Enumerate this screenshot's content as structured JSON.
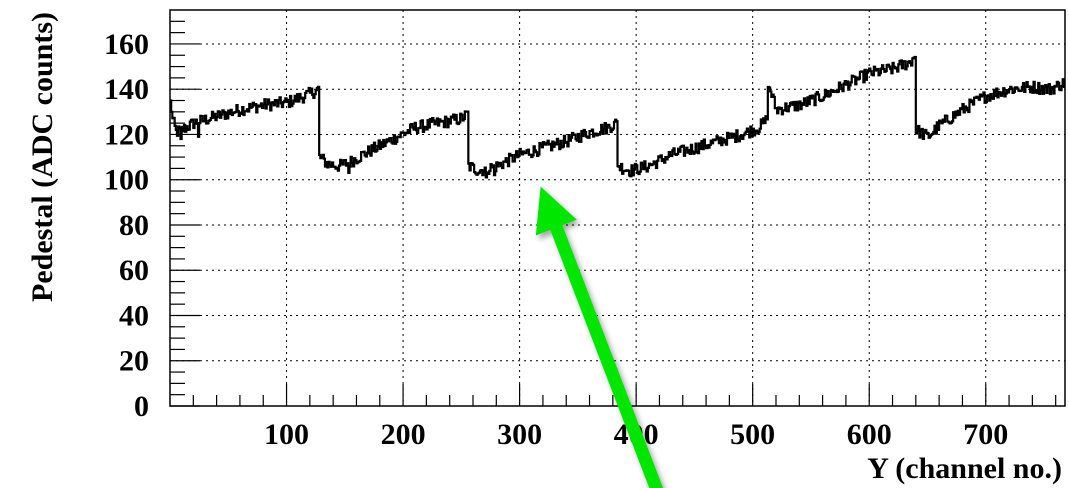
{
  "chart_data": {
    "type": "line",
    "title": "",
    "xlabel": "Y (channel no.)",
    "ylabel": "Pedestal (ADC counts)",
    "xlim": [
      0,
      768
    ],
    "ylim": [
      0,
      175
    ],
    "x_ticks": [
      100,
      200,
      300,
      400,
      500,
      600,
      700
    ],
    "y_ticks": [
      0,
      20,
      40,
      60,
      80,
      100,
      120,
      140,
      160
    ],
    "grid": true,
    "series": [
      {
        "values_x": [
          0,
          5,
          10,
          20,
          40,
          60,
          80,
          100,
          110,
          120,
          127,
          128,
          135,
          145,
          155,
          165,
          180,
          195,
          210,
          230,
          250,
          255,
          256,
          265,
          280,
          300,
          320,
          340,
          360,
          375,
          383,
          384,
          395,
          410,
          430,
          450,
          470,
          490,
          505,
          511,
          512,
          514,
          520,
          540,
          560,
          580,
          600,
          620,
          635,
          639,
          640,
          650,
          660,
          680,
          700,
          720,
          740,
          755,
          768
        ],
        "values_y": [
          130,
          121,
          122,
          125,
          128,
          131,
          133,
          134,
          136,
          138,
          140,
          110,
          107,
          106,
          108,
          111,
          115,
          119,
          123,
          125,
          127,
          129,
          106,
          104,
          106,
          111,
          114,
          117,
          121,
          123,
          125,
          106,
          104,
          106,
          111,
          114,
          117,
          120,
          123,
          126,
          129,
          141,
          131,
          133,
          137,
          142,
          147,
          149,
          152,
          155,
          122,
          119,
          124,
          131,
          137,
          140,
          141,
          140,
          143
        ]
      }
    ],
    "annotations": [
      {
        "type": "arrow",
        "color": "#00e600",
        "from": [
          420,
          -40
        ],
        "to": [
          318,
          97
        ]
      }
    ]
  }
}
